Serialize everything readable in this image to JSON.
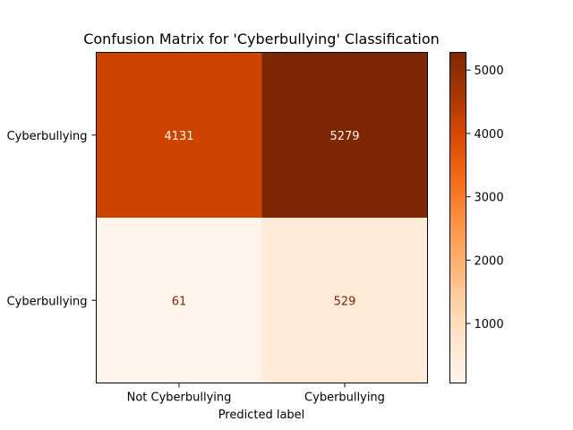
{
  "chart_data": {
    "type": "heatmap",
    "title": "Confusion Matrix for 'Cyberbullying' Classification",
    "xlabel": "Predicted label",
    "ylabel": "",
    "x_categories": [
      "Not Cyberbullying",
      "Cyberbullying"
    ],
    "y_categories": [
      "Cyberbullying",
      "Cyberbullying"
    ],
    "matrix": [
      [
        4131,
        5279
      ],
      [
        61,
        529
      ]
    ],
    "colormap": "Oranges",
    "colorbar": {
      "range": [
        61,
        5279
      ],
      "ticks": [
        1000,
        2000,
        3000,
        4000,
        5000
      ],
      "tick_labels": [
        "1000",
        "2000",
        "3000",
        "4000",
        "5000"
      ]
    },
    "colors": {
      "dark_text": "#7f2704",
      "light_text": "#fff5eb"
    }
  }
}
